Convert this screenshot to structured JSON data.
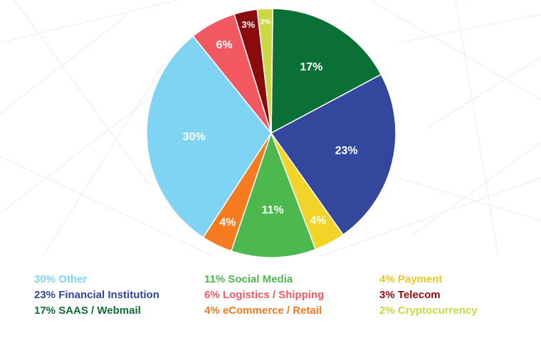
{
  "chart_data": {
    "type": "pie",
    "slices": [
      {
        "label": "17% SAAS / Webmail",
        "value": 17,
        "display": "17%",
        "color": "#0b7035",
        "text_color": "#0b7035"
      },
      {
        "label": "23% Financial Institution",
        "value": 23,
        "display": "23%",
        "color": "#33479c",
        "text_color": "#2f4597"
      },
      {
        "label": "4% Payment",
        "value": 4,
        "display": "4%",
        "color": "#f2d428",
        "text_color": "#e8c729"
      },
      {
        "label": "11% Social Media",
        "value": 11,
        "display": "11%",
        "color": "#4db84d",
        "text_color": "#4db84d"
      },
      {
        "label": "4% eCommerce / Retail",
        "value": 4,
        "display": "4%",
        "color": "#f47b20",
        "text_color": "#f47b20"
      },
      {
        "label": "30% Other",
        "value": 30,
        "display": "30%",
        "color": "#7fd3f3",
        "text_color": "#7fd3f3"
      },
      {
        "label": "6% Logistics / Shipping",
        "value": 6,
        "display": "6%",
        "color": "#f2585f",
        "text_color": "#f2585f"
      },
      {
        "label": "3% Telecom",
        "value": 3,
        "display": "3%",
        "color": "#8a0b0b",
        "text_color": "#8a0b0b"
      },
      {
        "label": "2% Cryptocurrency",
        "value": 2,
        "display": "2%",
        "color": "#c9d844",
        "text_color": "#c9d844"
      }
    ],
    "legend_order": [
      5,
      1,
      0,
      3,
      6,
      4,
      2,
      7,
      8
    ],
    "legend_position": "bottom"
  }
}
